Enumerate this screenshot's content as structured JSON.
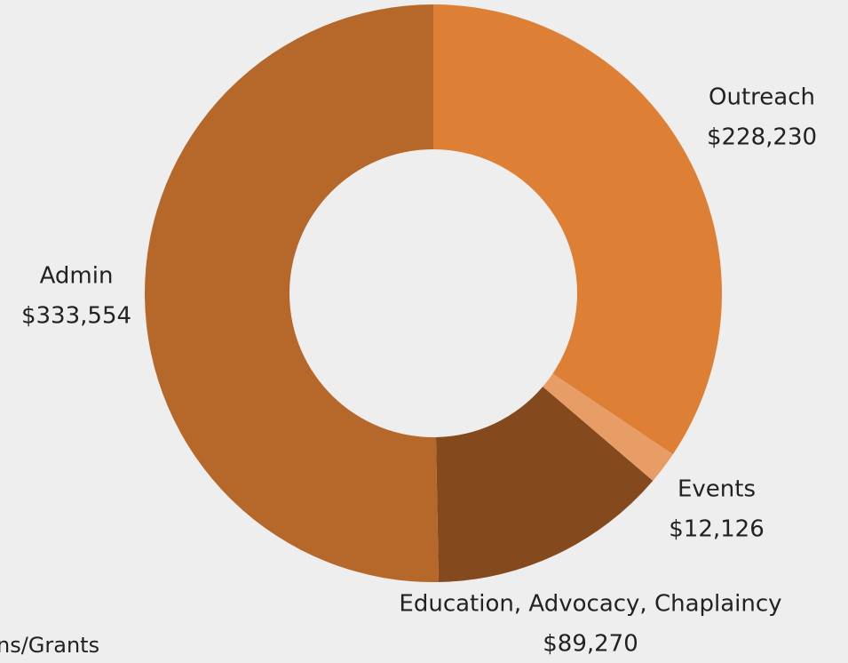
{
  "chart_data": {
    "type": "donut",
    "categories": [
      "Outreach",
      "Events",
      "Education, Advocacy, Chaplaincy",
      "Admin"
    ],
    "values": [
      228230,
      12126,
      89270,
      333554
    ],
    "value_labels": [
      "$228,230",
      "$12,126",
      "$89,270",
      "$333,554"
    ],
    "colors": [
      "#dd8035",
      "#e89c66",
      "#844a1e",
      "#b5682a"
    ],
    "annotation": "ns/Grants"
  }
}
